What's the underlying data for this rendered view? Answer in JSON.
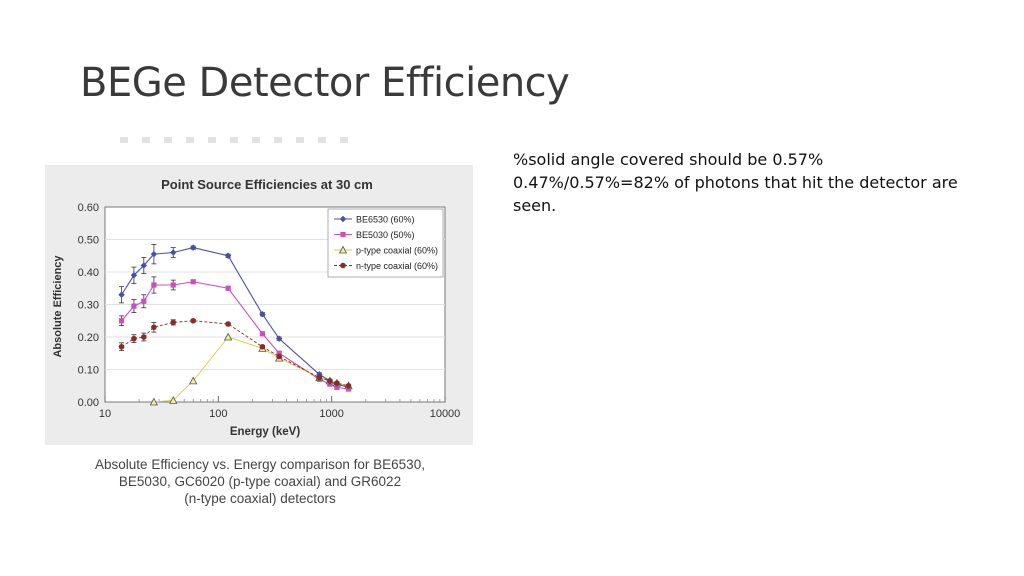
{
  "slide": {
    "title": "BEGe Detector Efficiency",
    "notes": [
      "%solid angle covered should be 0.57%",
      "0.47%/0.57%=82% of photons that hit the detector are seen."
    ],
    "caption": [
      "Absolute Efficiency vs. Energy comparison for BE6530,",
      "BE5030, GC6020 (p-type coaxial) and GR6022",
      "(n-type coaxial) detectors"
    ]
  },
  "chart_data": {
    "type": "line",
    "title": "Point Source Efficiencies at 30 cm",
    "xlabel": "Energy (keV)",
    "ylabel": "Absolute Efficiency",
    "xscale": "log",
    "xlim": [
      10,
      10000
    ],
    "ylim": [
      0,
      0.6
    ],
    "xticks": [
      10,
      100,
      1000,
      10000
    ],
    "xtick_labels": [
      "10",
      "100",
      "1000",
      "10000"
    ],
    "yticks": [
      0,
      0.1,
      0.2,
      0.3,
      0.4,
      0.5,
      0.6
    ],
    "ytick_labels": [
      "0.00",
      "0.10",
      "0.20",
      "0.30",
      "0.40",
      "0.50",
      "0.60"
    ],
    "legend_position": "top-right",
    "series": [
      {
        "name": "BE6530 (60%)",
        "color": "#4a4ea8",
        "marker": "diamond",
        "x": [
          14,
          18,
          22,
          27,
          40,
          60,
          122,
          245,
          344,
          779,
          964,
          1112,
          1408
        ],
        "y": [
          0.33,
          0.39,
          0.42,
          0.455,
          0.46,
          0.475,
          0.45,
          0.27,
          0.195,
          0.085,
          0.065,
          0.055,
          0.045
        ],
        "err": [
          0.025,
          0.025,
          0.025,
          0.03,
          0.015,
          0.005,
          0.005,
          0.005,
          0.005,
          0.005,
          0.005,
          0.005,
          0.005
        ]
      },
      {
        "name": "BE5030 (50%)",
        "color": "#c94fbf",
        "marker": "square",
        "x": [
          14,
          18,
          22,
          27,
          40,
          60,
          122,
          245,
          344,
          779,
          964,
          1112,
          1408
        ],
        "y": [
          0.25,
          0.295,
          0.31,
          0.36,
          0.36,
          0.37,
          0.35,
          0.21,
          0.15,
          0.07,
          0.055,
          0.045,
          0.04
        ],
        "err": [
          0.015,
          0.02,
          0.02,
          0.025,
          0.015,
          0.005,
          0.005,
          0.005,
          0.005,
          0.005,
          0.005,
          0.005,
          0.005
        ]
      },
      {
        "name": "p-type coaxial (60%)",
        "color": "#d6cc3a",
        "marker": "triangle",
        "x": [
          27,
          40,
          60,
          122,
          245,
          344,
          779,
          964,
          1112,
          1408
        ],
        "y": [
          0.0,
          0.005,
          0.065,
          0.2,
          0.165,
          0.135,
          0.075,
          0.065,
          0.058,
          0.05
        ],
        "err": [
          0,
          0,
          0,
          0,
          0,
          0,
          0,
          0,
          0,
          0
        ]
      },
      {
        "name": "n-type coaxial (60%)",
        "color": "#8b2a2a",
        "marker": "circle",
        "x": [
          14,
          18,
          22,
          27,
          40,
          60,
          122,
          245,
          344,
          779,
          964,
          1112,
          1408
        ],
        "y": [
          0.17,
          0.195,
          0.2,
          0.23,
          0.245,
          0.25,
          0.24,
          0.17,
          0.14,
          0.075,
          0.065,
          0.058,
          0.05
        ],
        "err": [
          0.012,
          0.012,
          0.012,
          0.015,
          0.008,
          0.004,
          0.004,
          0.004,
          0.004,
          0.004,
          0.004,
          0.004,
          0.004
        ]
      }
    ]
  }
}
